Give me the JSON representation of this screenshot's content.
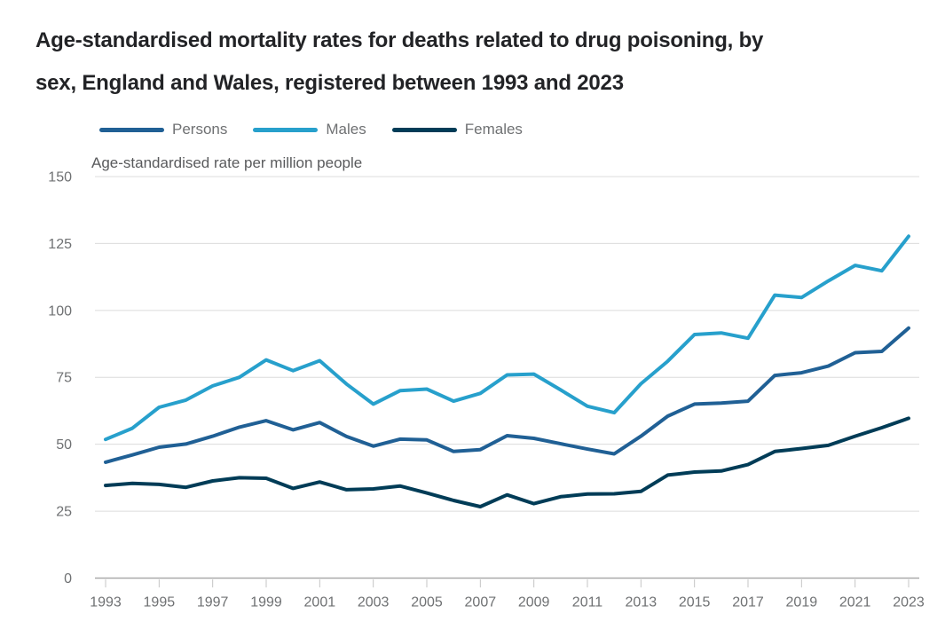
{
  "header": {
    "title_line1": "Age-standardised mortality rates for deaths related to drug poisoning, by",
    "title_line2": "sex, England and Wales, registered between 1993 and 2023"
  },
  "chart_data": {
    "type": "line",
    "title": "Age-standardised mortality rates for deaths related to drug poisoning, by sex, England and Wales, registered between 1993 and 2023",
    "subtitle": "Age-standardised rate per million people",
    "ylabel": "Age-standardised rate per million people",
    "xlabel": "",
    "ylim": [
      0,
      150
    ],
    "y_ticks": [
      0,
      25,
      50,
      75,
      100,
      125,
      150
    ],
    "x": [
      1993,
      1994,
      1995,
      1996,
      1997,
      1998,
      1999,
      2000,
      2001,
      2002,
      2003,
      2004,
      2005,
      2006,
      2007,
      2008,
      2009,
      2010,
      2011,
      2012,
      2013,
      2014,
      2015,
      2016,
      2017,
      2018,
      2019,
      2020,
      2021,
      2022,
      2023
    ],
    "x_tick_labels": [
      1993,
      1995,
      1997,
      1999,
      2001,
      2003,
      2005,
      2007,
      2009,
      2011,
      2013,
      2015,
      2017,
      2019,
      2021,
      2023
    ],
    "grid": true,
    "legend_position": "top",
    "series": [
      {
        "name": "Persons",
        "color": "#206095",
        "values": [
          43.3,
          46.0,
          48.9,
          50.1,
          53.0,
          56.4,
          58.8,
          55.4,
          58.1,
          52.9,
          49.3,
          51.9,
          51.6,
          47.3,
          48.0,
          53.2,
          52.2,
          50.2,
          48.2,
          46.4,
          53.0,
          60.5,
          65.0,
          65.4,
          66.1,
          75.7,
          76.7,
          79.2,
          84.2,
          84.7,
          93.4
        ]
      },
      {
        "name": "Males",
        "color": "#27a0cc",
        "values": [
          51.8,
          56.0,
          63.8,
          66.5,
          71.8,
          75.0,
          81.5,
          77.5,
          81.2,
          72.5,
          65.0,
          70.0,
          70.6,
          66.1,
          69.0,
          75.9,
          76.2,
          70.3,
          64.2,
          61.8,
          72.6,
          81.0,
          91.0,
          91.6,
          89.6,
          105.7,
          104.8,
          111.0,
          116.8,
          114.8,
          127.7
        ]
      },
      {
        "name": "Females",
        "color": "#003c57",
        "values": [
          34.6,
          35.4,
          35.0,
          33.9,
          36.3,
          37.5,
          37.3,
          33.5,
          35.9,
          33.0,
          33.3,
          34.4,
          31.8,
          29.0,
          26.7,
          31.1,
          27.8,
          30.4,
          31.4,
          31.5,
          32.4,
          38.5,
          39.6,
          40.0,
          42.4,
          47.3,
          48.4,
          49.6,
          53.0,
          56.2,
          59.7
        ]
      }
    ]
  },
  "colors": {
    "background": "#ffffff",
    "title_text": "#222326",
    "axis_text": "#6f7173",
    "subtitle_text": "#595a5c",
    "gridline": "#dcdcdc",
    "axis_line": "#a9a9a9",
    "tick_mark": "#c4c4c4"
  }
}
